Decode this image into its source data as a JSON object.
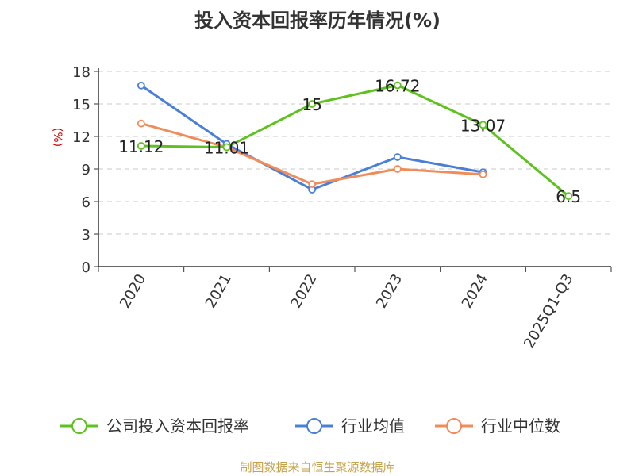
{
  "title": "投入资本回报率历年情况(%)",
  "source": "制图数据来自恒生聚源数据库",
  "chart_data": {
    "type": "line",
    "unit_label": "(%)",
    "categories": [
      "2020",
      "2021",
      "2022",
      "2023",
      "2024",
      "2025Q1-Q3"
    ],
    "ylim": [
      0,
      18
    ],
    "yticks": [
      0,
      3,
      6,
      9,
      12,
      15,
      18
    ],
    "grid": true,
    "legend_position": "bottom",
    "series": [
      {
        "name": "公司投入资本回报率",
        "color": "#5dc21e",
        "values": [
          11.12,
          11.01,
          15,
          16.72,
          13.07,
          6.5
        ],
        "labels": [
          "11.12",
          "11.01",
          "15",
          "16.72",
          "13.07",
          "6.5"
        ]
      },
      {
        "name": "行业均值",
        "color": "#4a7fd8",
        "values": [
          16.7,
          11.3,
          7.1,
          10.1,
          8.7,
          null
        ]
      },
      {
        "name": "行业中位数",
        "color": "#f28b5a",
        "values": [
          13.2,
          11.0,
          7.6,
          9.0,
          8.5,
          null
        ]
      }
    ]
  }
}
